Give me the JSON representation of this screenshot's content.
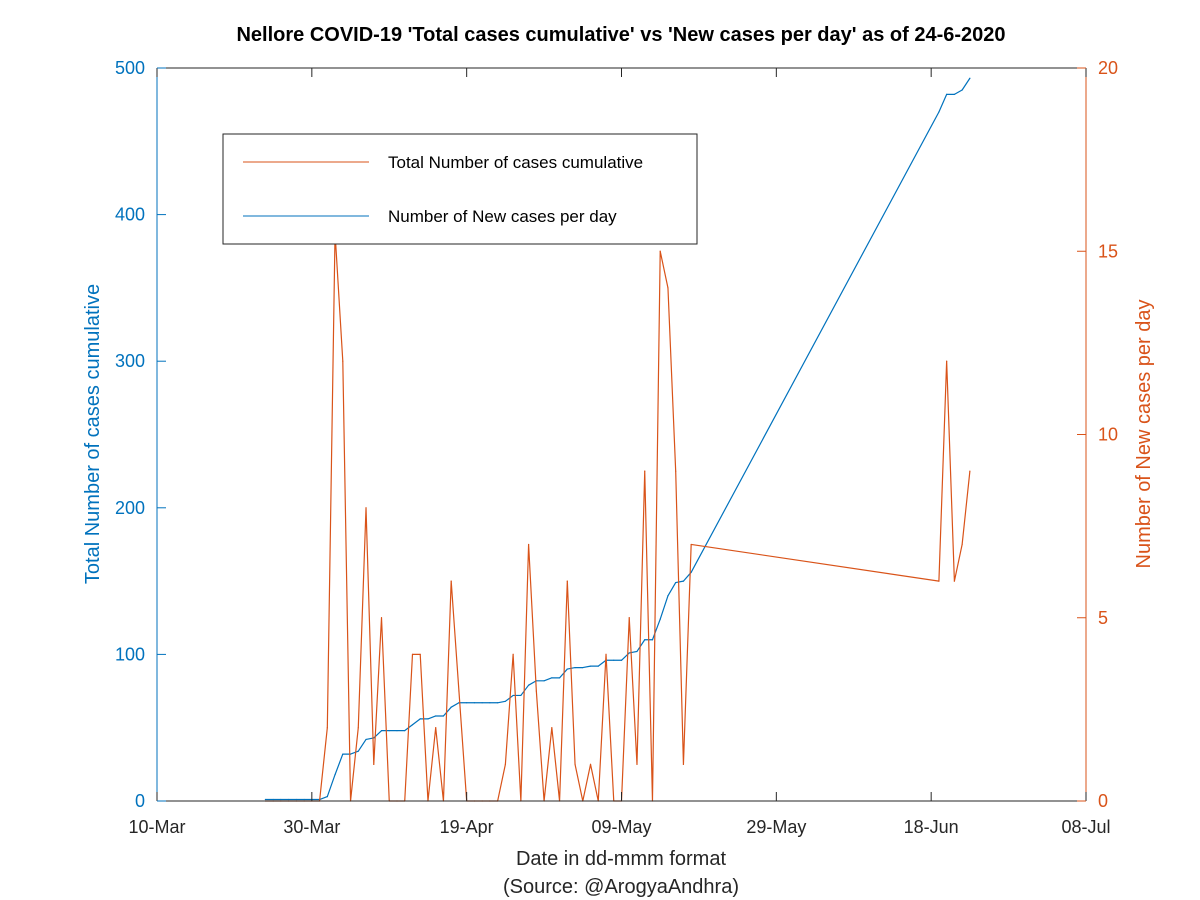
{
  "colors": {
    "left_axis": "#0072BD",
    "right_axis": "#D95319",
    "axes": "#262626"
  },
  "chart_data": {
    "type": "line",
    "title": "Nellore COVID-19 'Total cases cumulative' vs 'New cases per day' as of 24-6-2020",
    "xlabel": "Date in dd-mmm format",
    "source_note": "(Source: @ArogyaAndhra)",
    "ylabel_left": "Total Number of cases cumulative",
    "ylabel_right": "Number of New cases per day",
    "xlim": [
      "2020-03-10",
      "2020-07-08"
    ],
    "x_ticks": [
      "10-Mar",
      "30-Mar",
      "19-Apr",
      "09-May",
      "29-May",
      "18-Jun",
      "08-Jul"
    ],
    "ylim_left": [
      0,
      500
    ],
    "y_ticks_left": [
      "0",
      "100",
      "200",
      "300",
      "400",
      "500"
    ],
    "ylim_right": [
      0,
      20
    ],
    "y_ticks_right": [
      "0",
      "5",
      "10",
      "15",
      "20"
    ],
    "grid": false,
    "legend": {
      "placement": "upper-left inside",
      "entries": [
        {
          "label": "Total Number of cases cumulative",
          "color": "#D95319"
        },
        {
          "label": "Number of New cases per day",
          "color": "#0072BD"
        }
      ]
    },
    "series": [
      {
        "axis": "left",
        "color": "#0072BD",
        "points": [
          [
            "2020-03-24",
            1
          ],
          [
            "2020-03-25",
            1
          ],
          [
            "2020-03-26",
            1
          ],
          [
            "2020-03-27",
            1
          ],
          [
            "2020-03-28",
            1
          ],
          [
            "2020-03-29",
            1
          ],
          [
            "2020-03-30",
            1
          ],
          [
            "2020-03-31",
            1
          ],
          [
            "2020-04-01",
            3
          ],
          [
            "2020-04-02",
            18
          ],
          [
            "2020-04-03",
            32
          ],
          [
            "2020-04-04",
            32
          ],
          [
            "2020-04-05",
            34
          ],
          [
            "2020-04-06",
            42
          ],
          [
            "2020-04-07",
            43
          ],
          [
            "2020-04-08",
            48
          ],
          [
            "2020-04-09",
            48
          ],
          [
            "2020-04-10",
            48
          ],
          [
            "2020-04-11",
            48
          ],
          [
            "2020-04-12",
            52
          ],
          [
            "2020-04-13",
            56
          ],
          [
            "2020-04-14",
            56
          ],
          [
            "2020-04-15",
            58
          ],
          [
            "2020-04-16",
            58
          ],
          [
            "2020-04-17",
            64
          ],
          [
            "2020-04-18",
            67
          ],
          [
            "2020-04-19",
            67
          ],
          [
            "2020-04-20",
            67
          ],
          [
            "2020-04-21",
            67
          ],
          [
            "2020-04-22",
            67
          ],
          [
            "2020-04-23",
            67
          ],
          [
            "2020-04-24",
            68
          ],
          [
            "2020-04-25",
            72
          ],
          [
            "2020-04-26",
            72
          ],
          [
            "2020-04-27",
            79
          ],
          [
            "2020-04-28",
            82
          ],
          [
            "2020-04-29",
            82
          ],
          [
            "2020-04-30",
            84
          ],
          [
            "2020-05-01",
            84
          ],
          [
            "2020-05-02",
            90
          ],
          [
            "2020-05-03",
            91
          ],
          [
            "2020-05-04",
            91
          ],
          [
            "2020-05-05",
            92
          ],
          [
            "2020-05-06",
            92
          ],
          [
            "2020-05-07",
            96
          ],
          [
            "2020-05-08",
            96
          ],
          [
            "2020-05-09",
            96
          ],
          [
            "2020-05-10",
            101
          ],
          [
            "2020-05-11",
            102
          ],
          [
            "2020-05-12",
            110
          ],
          [
            "2020-05-13",
            110
          ],
          [
            "2020-05-14",
            124
          ],
          [
            "2020-05-15",
            140
          ],
          [
            "2020-05-16",
            149
          ],
          [
            "2020-05-17",
            150
          ],
          [
            "2020-05-18",
            156
          ],
          [
            "2020-06-19",
            470
          ],
          [
            "2020-06-20",
            482
          ],
          [
            "2020-06-21",
            482
          ],
          [
            "2020-06-22",
            485
          ],
          [
            "2020-06-23",
            493
          ]
        ]
      },
      {
        "axis": "right",
        "color": "#D95319",
        "points": [
          [
            "2020-03-24",
            0
          ],
          [
            "2020-03-25",
            0
          ],
          [
            "2020-03-26",
            0
          ],
          [
            "2020-03-27",
            0
          ],
          [
            "2020-03-28",
            0
          ],
          [
            "2020-03-29",
            0
          ],
          [
            "2020-03-30",
            0
          ],
          [
            "2020-03-31",
            0
          ],
          [
            "2020-04-01",
            2
          ],
          [
            "2020-04-02",
            15.5
          ],
          [
            "2020-04-03",
            12
          ],
          [
            "2020-04-04",
            0
          ],
          [
            "2020-04-05",
            2
          ],
          [
            "2020-04-06",
            8
          ],
          [
            "2020-04-07",
            1
          ],
          [
            "2020-04-08",
            5
          ],
          [
            "2020-04-09",
            0
          ],
          [
            "2020-04-10",
            0
          ],
          [
            "2020-04-11",
            0
          ],
          [
            "2020-04-12",
            4
          ],
          [
            "2020-04-13",
            4
          ],
          [
            "2020-04-14",
            0
          ],
          [
            "2020-04-15",
            2
          ],
          [
            "2020-04-16",
            0
          ],
          [
            "2020-04-17",
            6
          ],
          [
            "2020-04-18",
            3
          ],
          [
            "2020-04-19",
            0
          ],
          [
            "2020-04-20",
            0
          ],
          [
            "2020-04-21",
            0
          ],
          [
            "2020-04-22",
            0
          ],
          [
            "2020-04-23",
            0
          ],
          [
            "2020-04-24",
            1
          ],
          [
            "2020-04-25",
            4
          ],
          [
            "2020-04-26",
            0
          ],
          [
            "2020-04-27",
            7
          ],
          [
            "2020-04-28",
            3
          ],
          [
            "2020-04-29",
            0
          ],
          [
            "2020-04-30",
            2
          ],
          [
            "2020-05-01",
            0
          ],
          [
            "2020-05-02",
            6
          ],
          [
            "2020-05-03",
            1
          ],
          [
            "2020-05-04",
            0
          ],
          [
            "2020-05-05",
            1
          ],
          [
            "2020-05-06",
            0
          ],
          [
            "2020-05-07",
            4
          ],
          [
            "2020-05-08",
            0
          ],
          [
            "2020-05-09",
            0
          ],
          [
            "2020-05-10",
            5
          ],
          [
            "2020-05-11",
            1
          ],
          [
            "2020-05-12",
            9
          ],
          [
            "2020-05-13",
            0
          ],
          [
            "2020-05-14",
            15
          ],
          [
            "2020-05-15",
            14
          ],
          [
            "2020-05-16",
            9
          ],
          [
            "2020-05-17",
            1
          ],
          [
            "2020-05-18",
            7
          ],
          [
            "2020-06-19",
            6
          ],
          [
            "2020-06-20",
            12
          ],
          [
            "2020-06-21",
            6
          ],
          [
            "2020-06-22",
            7
          ],
          [
            "2020-06-23",
            9
          ]
        ]
      }
    ]
  }
}
